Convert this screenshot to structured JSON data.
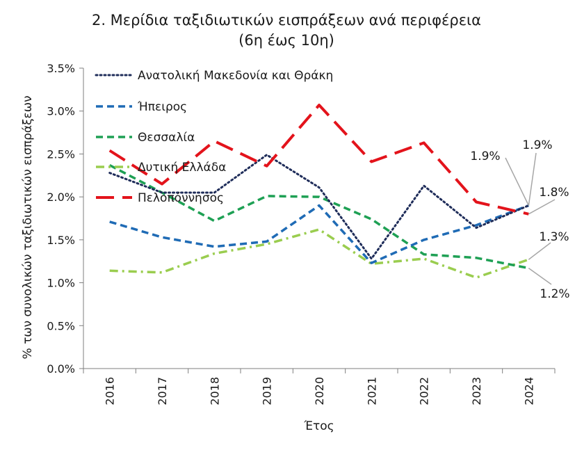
{
  "chart_data": {
    "type": "line",
    "title": "2. Μερίδια ταξιδιωτικών εισπράξεων  ανά περιφέρεια",
    "subtitle": "(6η έως 10η)",
    "xlabel": "Έτος",
    "ylabel": "% των συνολικών ταξιδιωτικών εισπράξεων",
    "ylim": [
      0,
      3.5
    ],
    "ytick_labels": [
      "0.0%",
      "0.5%",
      "1.0%",
      "1.5%",
      "2.0%",
      "2.5%",
      "3.0%",
      "3.5%"
    ],
    "categories": [
      "2016",
      "2017",
      "2018",
      "2019",
      "2020",
      "2021",
      "2022",
      "2023",
      "2024"
    ],
    "grid": false,
    "legend_position": "top-left",
    "series": [
      {
        "name": "Ανατολική Μακεδονία και Θράκη",
        "color": "#1f2d5a",
        "style": "dotted",
        "values": [
          2.28,
          2.05,
          2.05,
          2.49,
          2.11,
          1.28,
          2.13,
          1.64,
          1.9
        ]
      },
      {
        "name": "Ήπειρος",
        "color": "#1f6bb5",
        "style": "dashed",
        "values": [
          1.71,
          1.53,
          1.42,
          1.48,
          1.9,
          1.23,
          1.5,
          1.67,
          1.9
        ]
      },
      {
        "name": "Θεσσαλία",
        "color": "#1ea054",
        "style": "dashed",
        "values": [
          2.37,
          2.05,
          1.72,
          2.01,
          2.0,
          1.74,
          1.33,
          1.29,
          1.17
        ]
      },
      {
        "name": "Δυτική Ελλάδα",
        "color": "#9acd4f",
        "style": "dashdot",
        "values": [
          1.14,
          1.12,
          1.34,
          1.45,
          1.62,
          1.22,
          1.28,
          1.06,
          1.27
        ]
      },
      {
        "name": "Πελοπόννησος",
        "color": "#e3131b",
        "style": "longdash",
        "values": [
          2.54,
          2.15,
          2.65,
          2.36,
          3.07,
          2.41,
          2.63,
          1.94,
          1.8
        ]
      }
    ],
    "annotations": [
      {
        "text": "1.9%",
        "series": 0
      },
      {
        "text": "1.9%",
        "series": 1
      },
      {
        "text": "1.8%",
        "series": 4
      },
      {
        "text": "1.3%",
        "series": 3
      },
      {
        "text": "1.2%",
        "series": 2
      }
    ]
  }
}
